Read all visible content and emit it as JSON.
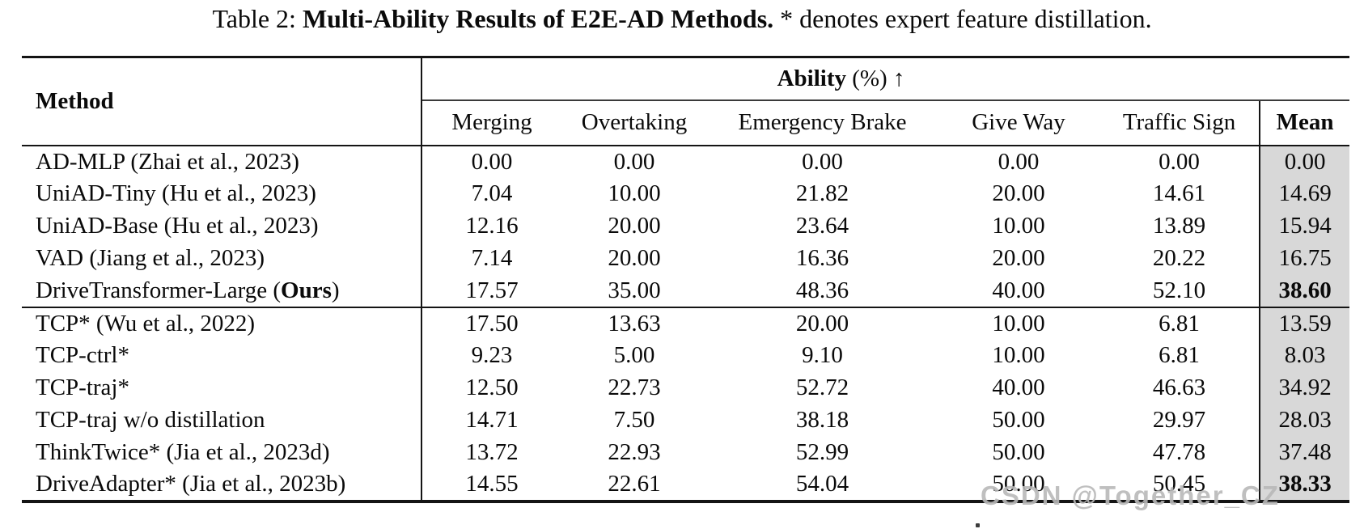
{
  "caption": {
    "prefix": "Table 2: ",
    "bold": "Multi-Ability Results of E2E-AD Methods.",
    "suffix": " * denotes expert feature distillation."
  },
  "table": {
    "method_header": "Method",
    "ability_bold": "Ability",
    "ability_rest": " (%) ↑",
    "columns": [
      "Merging",
      "Overtaking",
      "Emergency Brake",
      "Give Way",
      "Traffic Sign",
      "Mean"
    ],
    "sections": [
      {
        "rows": [
          {
            "method": "AD-MLP (Zhai et al., 2023)",
            "bold_part": "",
            "suffix": "",
            "values": [
              "0.00",
              "0.00",
              "0.00",
              "0.00",
              "0.00"
            ],
            "mean": "0.00",
            "mean_bold": false
          },
          {
            "method": "UniAD-Tiny (Hu et al., 2023)",
            "bold_part": "",
            "suffix": "",
            "values": [
              "7.04",
              "10.00",
              "21.82",
              "20.00",
              "14.61"
            ],
            "mean": "14.69",
            "mean_bold": false
          },
          {
            "method": "UniAD-Base (Hu et al., 2023)",
            "bold_part": "",
            "suffix": "",
            "values": [
              "12.16",
              "20.00",
              "23.64",
              "10.00",
              "13.89"
            ],
            "mean": "15.94",
            "mean_bold": false
          },
          {
            "method": "VAD (Jiang et al., 2023)",
            "bold_part": "",
            "suffix": "",
            "values": [
              "7.14",
              "20.00",
              "16.36",
              "20.00",
              "20.22"
            ],
            "mean": "16.75",
            "mean_bold": false
          },
          {
            "method": "DriveTransformer-Large (",
            "bold_part": "Ours",
            "suffix": ")",
            "values": [
              "17.57",
              "35.00",
              "48.36",
              "40.00",
              "52.10"
            ],
            "mean": "38.60",
            "mean_bold": true
          }
        ]
      },
      {
        "rows": [
          {
            "method": "TCP* (Wu et al., 2022)",
            "bold_part": "",
            "suffix": "",
            "values": [
              "17.50",
              "13.63",
              "20.00",
              "10.00",
              "6.81"
            ],
            "mean": "13.59",
            "mean_bold": false
          },
          {
            "method": "TCP-ctrl*",
            "bold_part": "",
            "suffix": "",
            "values": [
              "9.23",
              "5.00",
              "9.10",
              "10.00",
              "6.81"
            ],
            "mean": "8.03",
            "mean_bold": false
          },
          {
            "method": "TCP-traj*",
            "bold_part": "",
            "suffix": "",
            "values": [
              "12.50",
              "22.73",
              "52.72",
              "40.00",
              "46.63"
            ],
            "mean": "34.92",
            "mean_bold": false
          },
          {
            "method": "TCP-traj w/o distillation",
            "bold_part": "",
            "suffix": "",
            "values": [
              "14.71",
              "7.50",
              "38.18",
              "50.00",
              "29.97"
            ],
            "mean": "28.03",
            "mean_bold": false
          },
          {
            "method": "ThinkTwice* (Jia et al., 2023d)",
            "bold_part": "",
            "suffix": "",
            "values": [
              "13.72",
              "22.93",
              "52.99",
              "50.00",
              "47.78"
            ],
            "mean": "37.48",
            "mean_bold": false
          },
          {
            "method": "DriveAdapter* (Jia et al., 2023b)",
            "bold_part": "",
            "suffix": "",
            "values": [
              "14.55",
              "22.61",
              "54.04",
              "50.00",
              "50.45"
            ],
            "mean": "38.33",
            "mean_bold": true
          }
        ]
      }
    ]
  },
  "watermark": "CSDN @Together_CZ",
  "colors": {
    "mean_shade": "#d8d8d8",
    "rule": "#141414",
    "watermark": "#b8b8b8"
  }
}
